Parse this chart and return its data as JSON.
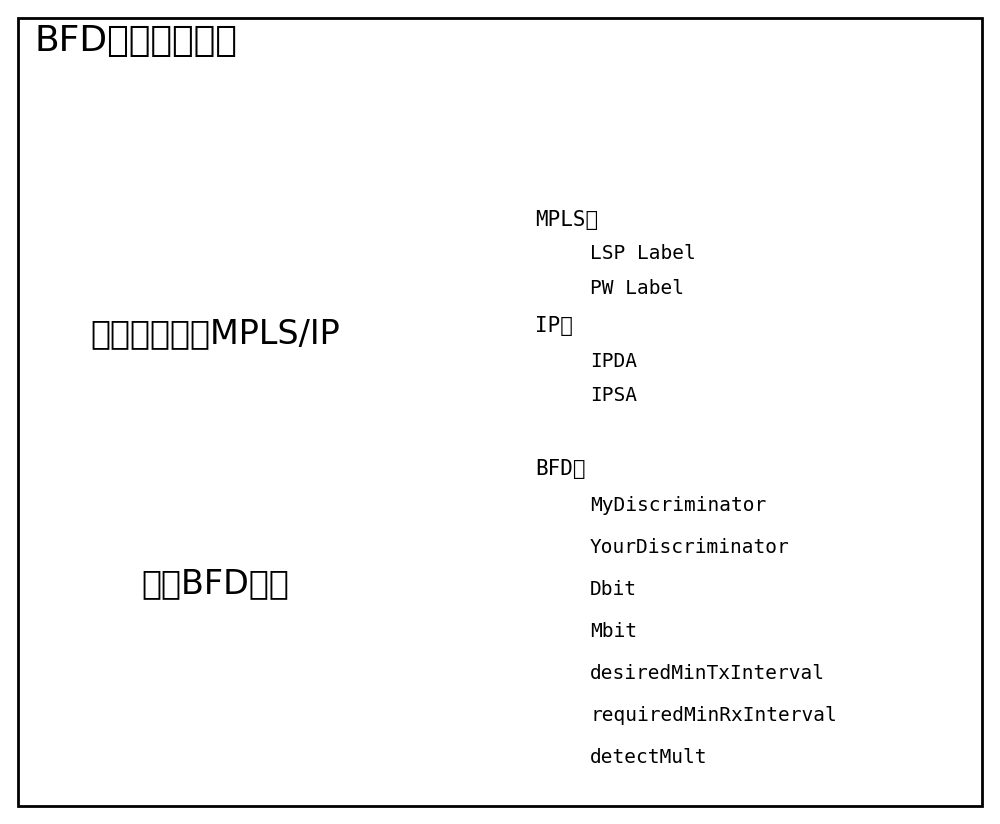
{
  "title": "BFD报文解析模块",
  "border_color": "#000000",
  "background_color": "#ffffff",
  "section1_label": "解析外层封装MPLS/IP",
  "section2_label": "解析BFD报文",
  "mpls_header": "MPLS：",
  "mpls_items": [
    "LSP Label",
    "PW Label"
  ],
  "ip_header": "IP：",
  "ip_items": [
    "IPDA",
    "IPSA"
  ],
  "bfd_header": "BFD：",
  "bfd_items": [
    "MyDiscriminator",
    "YourDiscriminator",
    "Dbit",
    "Mbit",
    "desiredMinTxInterval",
    "requiredMinRxInterval",
    "detectMult"
  ]
}
